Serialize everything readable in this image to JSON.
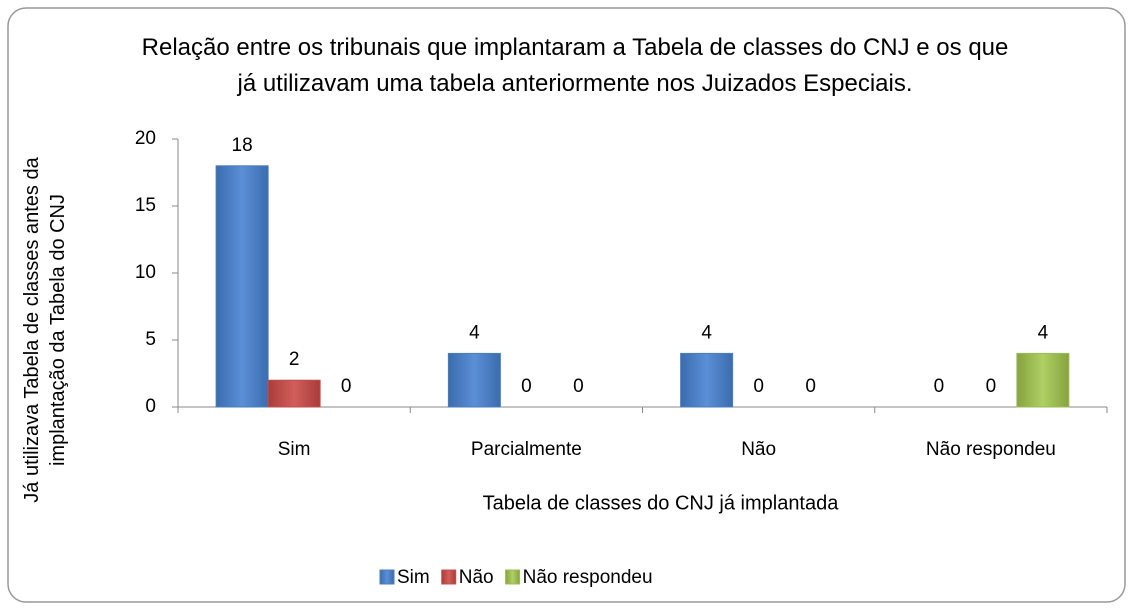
{
  "chart_data": {
    "type": "bar",
    "title": "Relação entre os tribunais que implantaram a Tabela de classes do CNJ e os que já utilizavam uma tabela anteriormente nos Juizados Especiais.",
    "x_label": "Tabela de classes do CNJ já implantada",
    "y_label": "Já utilizava Tabela de classes antes da implantação da Tabela do CNJ",
    "categories": [
      "Sim",
      "Parcialmente",
      "Não",
      "Não respondeu"
    ],
    "series": [
      {
        "name": "Sim",
        "color": "#4a7ebb",
        "values": [
          18,
          4,
          4,
          0
        ]
      },
      {
        "name": "Não",
        "color": "#c0504d",
        "values": [
          2,
          0,
          0,
          0
        ]
      },
      {
        "name": "Não respondeu",
        "color": "#9bbb59",
        "values": [
          0,
          0,
          0,
          4
        ]
      }
    ],
    "ylim": [
      0,
      20
    ],
    "yticks": [
      0,
      5,
      10,
      15,
      20
    ],
    "legend": "bottom"
  }
}
